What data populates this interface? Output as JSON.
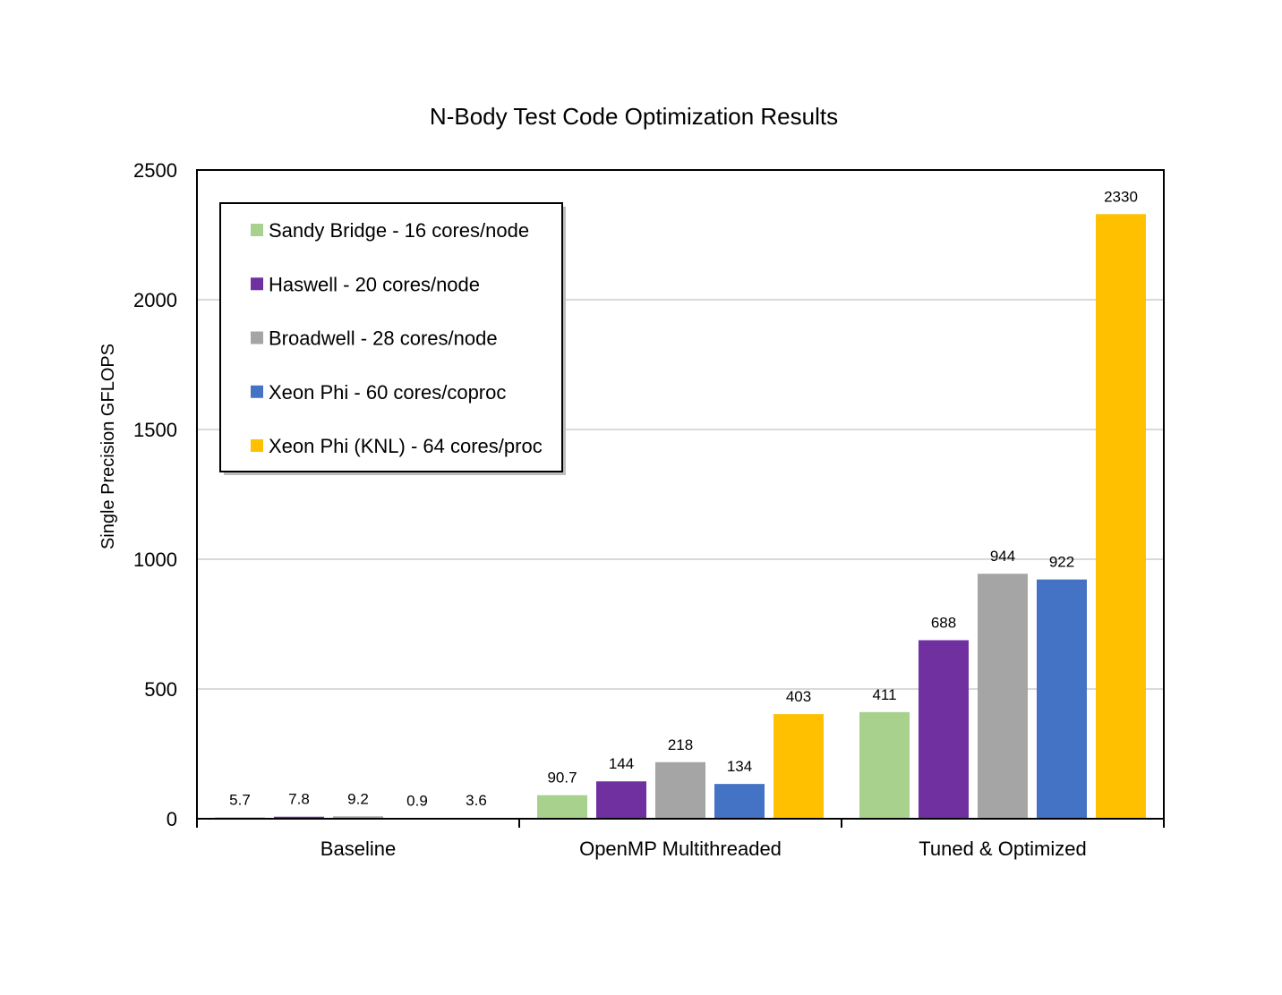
{
  "chart_data": {
    "type": "bar",
    "title": "N-Body Test Code Optimization Results",
    "xlabel": "",
    "ylabel": "Single Precision GFLOPS",
    "ylim": [
      0,
      2500
    ],
    "yticks": [
      0,
      500,
      1000,
      1500,
      2000,
      2500
    ],
    "grid": true,
    "legend_position": "top-left",
    "categories": [
      "Baseline",
      "OpenMP Multithreaded",
      "Tuned & Optimized"
    ],
    "series": [
      {
        "name": "Sandy Bridge - 16 cores/node",
        "color": "#A9D18E",
        "values": [
          5.7,
          90.7,
          411
        ],
        "labels": [
          "5.7",
          "90.7",
          "411"
        ]
      },
      {
        "name": "Haswell - 20 cores/node",
        "color": "#7030A0",
        "values": [
          7.8,
          144,
          688
        ],
        "labels": [
          "7.8",
          "144",
          "688"
        ]
      },
      {
        "name": "Broadwell - 28 cores/node",
        "color": "#A5A5A5",
        "values": [
          9.2,
          218,
          944
        ],
        "labels": [
          "9.2",
          "218",
          "944"
        ]
      },
      {
        "name": "Xeon Phi - 60 cores/coproc",
        "color": "#4472C4",
        "values": [
          0.9,
          134,
          922
        ],
        "labels": [
          "0.9",
          "134",
          "922"
        ]
      },
      {
        "name": "Xeon Phi (KNL) - 64 cores/proc",
        "color": "#FFC000",
        "values": [
          3.6,
          403,
          2330
        ],
        "labels": [
          "3.6",
          "403",
          "2330"
        ]
      }
    ]
  }
}
